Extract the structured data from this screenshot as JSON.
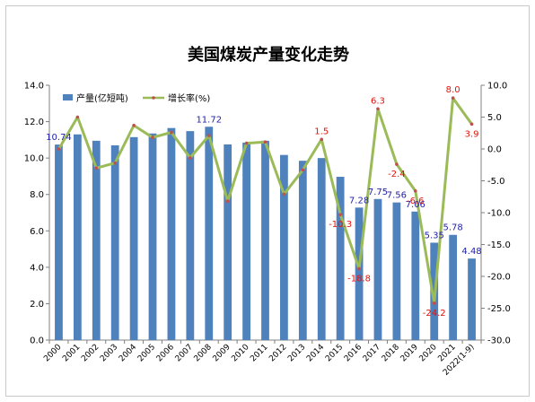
{
  "chart_data": {
    "type": "bar+line",
    "title": "美国煤炭产量变化走势",
    "categories": [
      "2000",
      "2001",
      "2002",
      "2003",
      "2004",
      "2005",
      "2006",
      "2007",
      "2008",
      "2009",
      "2010",
      "2011",
      "2012",
      "2013",
      "2014",
      "2015",
      "2016",
      "2017",
      "2018",
      "2019",
      "2020",
      "2021",
      "2022(1-9)"
    ],
    "series": [
      {
        "name": "产量(亿短吨)",
        "type": "bar",
        "axis": "left",
        "color": "#4f81bd",
        "values": [
          10.74,
          11.3,
          10.95,
          10.7,
          11.15,
          11.35,
          11.65,
          11.48,
          11.72,
          10.75,
          10.85,
          10.95,
          10.17,
          9.85,
          10.0,
          8.97,
          7.28,
          7.75,
          7.56,
          7.06,
          5.35,
          5.78,
          4.48
        ],
        "labels": [
          {
            "index": 0,
            "text": "10.74"
          },
          {
            "index": 8,
            "text": "11.72"
          },
          {
            "index": 16,
            "text": "7.28"
          },
          {
            "index": 17,
            "text": "7.75"
          },
          {
            "index": 18,
            "text": "7.56"
          },
          {
            "index": 19,
            "text": "7.06"
          },
          {
            "index": 20,
            "text": "5.35"
          },
          {
            "index": 21,
            "text": "5.78"
          },
          {
            "index": 22,
            "text": "4.48"
          }
        ]
      },
      {
        "name": "增长率(%)",
        "type": "line",
        "axis": "right",
        "color": "#9bbb59",
        "marker_color": "#c0504d",
        "values": [
          0.0,
          5.0,
          -3.0,
          -2.2,
          3.7,
          1.8,
          2.6,
          -1.4,
          2.1,
          -8.2,
          0.9,
          1.1,
          -7.1,
          -3.3,
          1.5,
          -10.3,
          -18.8,
          6.3,
          -2.4,
          -6.6,
          -24.2,
          8.0,
          3.9
        ],
        "labels": [
          {
            "index": 14,
            "text": "1.5"
          },
          {
            "index": 15,
            "text": "-10.3"
          },
          {
            "index": 16,
            "text": "-18.8"
          },
          {
            "index": 17,
            "text": "6.3"
          },
          {
            "index": 18,
            "text": "-2.4"
          },
          {
            "index": 19,
            "text": "-6.6"
          },
          {
            "index": 20,
            "text": "-24.2"
          },
          {
            "index": 21,
            "text": "8.0"
          },
          {
            "index": 22,
            "text": "3.9"
          }
        ]
      }
    ],
    "y_left": {
      "min": 0,
      "max": 14,
      "ticks": [
        "0.0",
        "2.0",
        "4.0",
        "6.0",
        "8.0",
        "10.0",
        "12.0",
        "14.0"
      ]
    },
    "y_right": {
      "min": -30,
      "max": 10,
      "ticks": [
        "-30.0",
        "-25.0",
        "-20.0",
        "-15.0",
        "-10.0",
        "-5.0",
        "0.0",
        "5.0",
        "10.0"
      ]
    },
    "grid": false,
    "legend": "top-left"
  },
  "colors": {
    "bar_label": "#1f1fa8",
    "line_label": "#e3120b",
    "axis": "#808080",
    "text": "#000000"
  }
}
